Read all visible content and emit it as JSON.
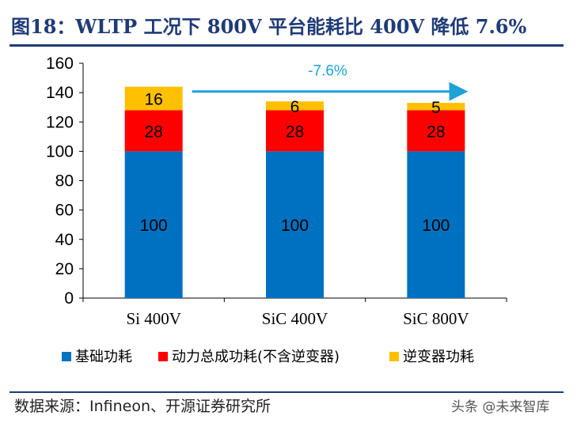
{
  "figure": {
    "title": "图18：WLTP 工况下 800V 平台能耗比 400V 降低 7.6%",
    "source": "数据来源：Infineon、开源证券研究所",
    "watermark": "头条 @未来智库"
  },
  "colors": {
    "title": "#1F3B77",
    "base": "#0070C0",
    "drive": "#FF0000",
    "inverter": "#FFC000",
    "arrow": "#1FA2D8"
  },
  "chart_data": {
    "type": "bar",
    "stacked": true,
    "categories": [
      "Si 400V",
      "SiC 400V",
      "SiC 800V"
    ],
    "series": [
      {
        "name": "基础功耗",
        "values": [
          100,
          100,
          100
        ],
        "color": "#0070C0"
      },
      {
        "name": "动力总成功耗(不含逆变器)",
        "values": [
          28,
          28,
          28
        ],
        "color": "#FF0000"
      },
      {
        "name": "逆变器功耗",
        "values": [
          16,
          6,
          5
        ],
        "color": "#FFC000"
      }
    ],
    "ylim": [
      0,
      160
    ],
    "yticks": [
      0,
      20,
      40,
      60,
      80,
      100,
      120,
      140,
      160
    ],
    "legend_position": "bottom",
    "annotation": {
      "text": "-7.6%",
      "from": "Si 400V",
      "to": "SiC 800V"
    }
  }
}
